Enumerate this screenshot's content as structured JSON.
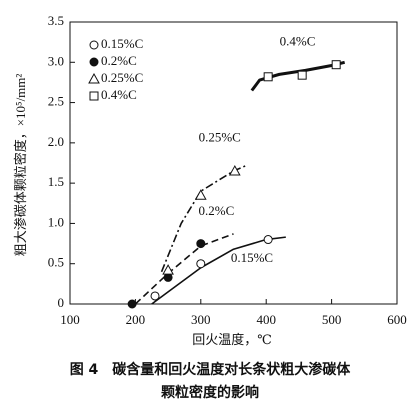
{
  "chart_data": {
    "type": "line",
    "x_label": "回火温度，℃",
    "y_label": "粗大渗碳体颗粒密度，×10⁵/mm²",
    "caption": [
      "图 4　碳含量和回火温度对长条状粗大渗碳体",
      "颗粒密度的影响"
    ],
    "xlim": [
      100,
      600
    ],
    "xticks": [
      100,
      200,
      300,
      400,
      500,
      600
    ],
    "ylim": [
      0,
      3.5
    ],
    "yticks": [
      0,
      0.5,
      {
        "value": 1,
        "label": "1.0"
      },
      1.5,
      {
        "value": 2,
        "label": "2.0"
      },
      2.5,
      {
        "value": 3,
        "label": "3.0"
      },
      3.5
    ],
    "legend": "upper left",
    "series": [
      {
        "name": "0.15%C",
        "color": "#111111",
        "marker": "circle-open",
        "dash": "solid",
        "width": 1.6,
        "x": [
          230,
          300,
          403
        ],
        "values": [
          0.1,
          0.5,
          0.8
        ],
        "fit_x": [
          225,
          250,
          300,
          350,
          400,
          430
        ],
        "fit_values": [
          0,
          0.15,
          0.45,
          0.68,
          0.8,
          0.83
        ]
      },
      {
        "name": "0.2%C",
        "color": "#111111",
        "marker": "circle-filled",
        "dash": "dashed",
        "width": 1.6,
        "x": [
          195,
          250,
          300
        ],
        "values": [
          0,
          0.33,
          0.75
        ],
        "fit_x": [
          200,
          250,
          300,
          350
        ],
        "fit_values": [
          0,
          0.38,
          0.72,
          0.87
        ]
      },
      {
        "name": "0.25%C",
        "color": "#111111",
        "marker": "triangle-open",
        "dash": "dashdot",
        "width": 1.6,
        "x": [
          250,
          300,
          352
        ],
        "values": [
          0.42,
          1.35,
          1.65
        ],
        "fit_x": [
          240,
          270,
          300,
          350,
          370
        ],
        "fit_values": [
          0.4,
          1.0,
          1.4,
          1.65,
          1.72
        ]
      },
      {
        "name": "0.4%C",
        "color": "#111111",
        "marker": "square-open",
        "dash": "solid",
        "width": 3,
        "x": [
          403,
          455,
          507
        ],
        "values": [
          2.82,
          2.84,
          2.97
        ],
        "fit_x": [
          378,
          390,
          420,
          460,
          500,
          520
        ],
        "fit_values": [
          2.65,
          2.78,
          2.85,
          2.9,
          2.96,
          3.0
        ]
      }
    ]
  }
}
